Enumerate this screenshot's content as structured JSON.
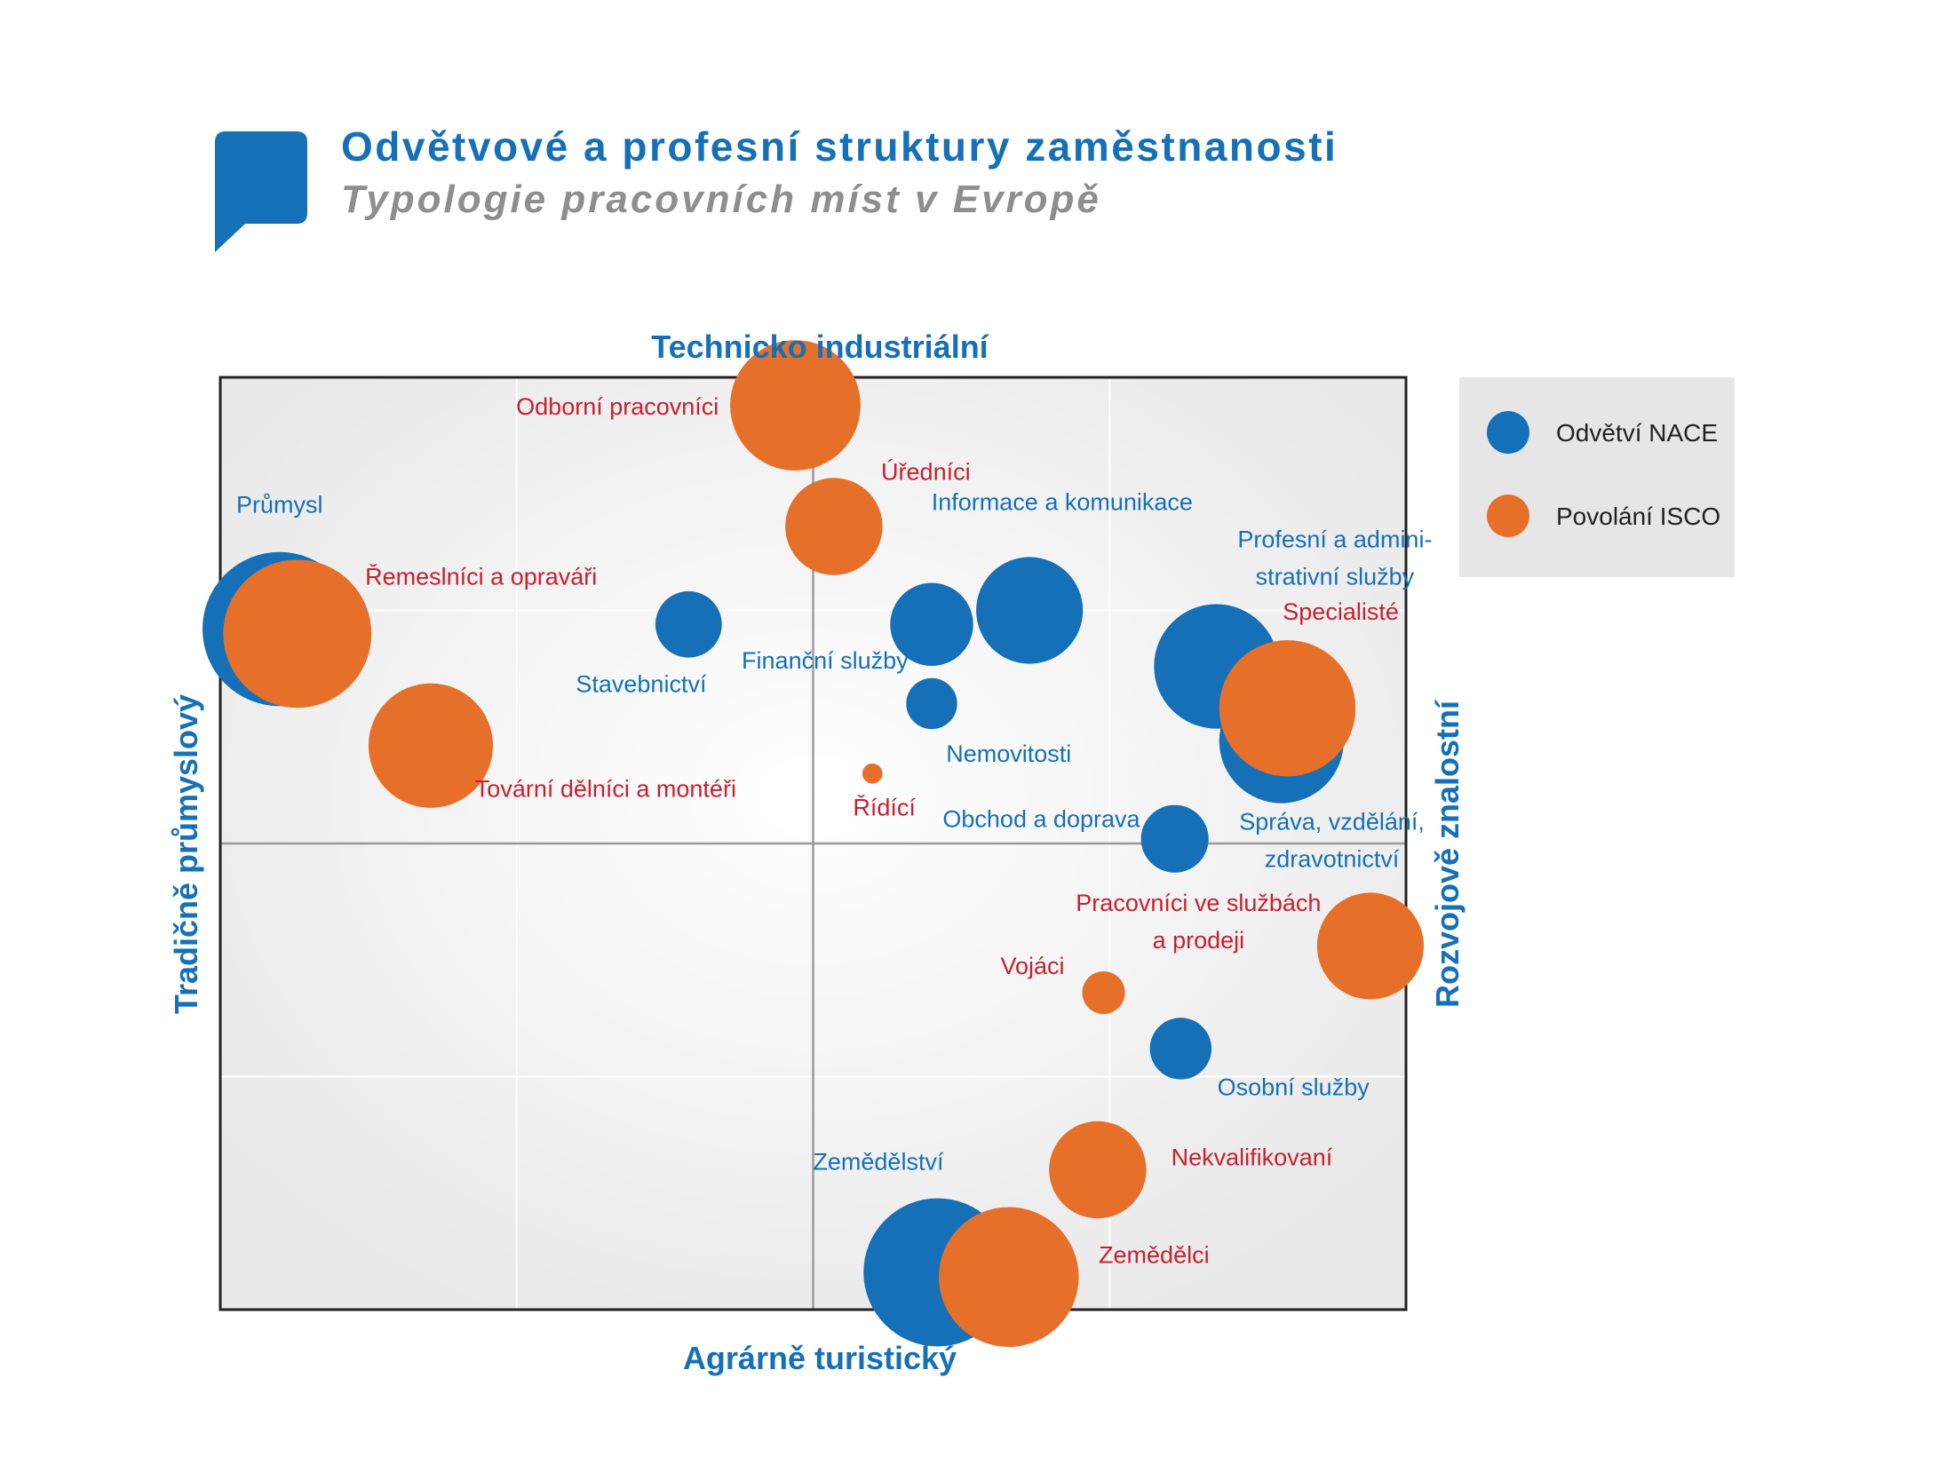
{
  "title": "Odvětvové a profesní struktury zaměstnanosti",
  "subtitle": "Typologie pracovních míst v Evropě",
  "colors": {
    "nace": "#1570b8",
    "isco": "#e6702a",
    "nace_label": "#1570b8",
    "isco_label": "#c8202f",
    "plot_bg": "#e9e9e9",
    "legend_bg": "#e6e6e6",
    "accent": "#1570b8"
  },
  "icon": "speech-bubble-icon",
  "chart_data": {
    "type": "scatter",
    "subtype": "bubble",
    "title": "Odvětvové a profesní struktury zaměstnanosti",
    "subtitle": "Typologie pracovních míst v Evropě",
    "axes": {
      "top": "Technicko industriální",
      "bottom": "Agrárně turistický",
      "left": "Tradičně průmyslový",
      "right": "Rozvojově znalostní"
    },
    "xlim": [
      -1,
      1
    ],
    "ylim": [
      -1,
      1
    ],
    "grid": true,
    "legend_position": "top-right",
    "series": [
      {
        "name": "Odvětví NACE",
        "points": [
          {
            "label": "Průmysl",
            "x": -0.9,
            "y": 0.46,
            "r": 0.13
          },
          {
            "label": "Stavebnictví",
            "x": -0.21,
            "y": 0.47,
            "r": 0.056
          },
          {
            "label": "Finanční služby",
            "x": 0.2,
            "y": 0.47,
            "r": 0.07
          },
          {
            "label": "Informace a komunikace",
            "x": 0.365,
            "y": 0.5,
            "r": 0.09
          },
          {
            "label": "Nemovitosti",
            "x": 0.2,
            "y": 0.3,
            "r": 0.043
          },
          {
            "label": "Profesní a administrativní služby",
            "x": 0.68,
            "y": 0.38,
            "r": 0.105
          },
          {
            "label": "Správa, vzdělání, zdravotnictví",
            "x": 0.79,
            "y": 0.22,
            "r": 0.105
          },
          {
            "label": "Obchod a doprava",
            "x": 0.61,
            "y": 0.01,
            "r": 0.057
          },
          {
            "label": "Osobní služby",
            "x": 0.62,
            "y": -0.44,
            "r": 0.052
          },
          {
            "label": "Zemědělství",
            "x": 0.21,
            "y": -0.92,
            "r": 0.125
          }
        ]
      },
      {
        "name": "Povolání ISCO",
        "points": [
          {
            "label": "Odborní pracovníci",
            "x": -0.03,
            "y": 0.94,
            "r": 0.11
          },
          {
            "label": "Úředníci",
            "x": 0.035,
            "y": 0.68,
            "r": 0.082
          },
          {
            "label": "Řemeslníci a opraváři",
            "x": -0.87,
            "y": 0.45,
            "r": 0.125
          },
          {
            "label": "Specialisté",
            "x": 0.8,
            "y": 0.29,
            "r": 0.115
          },
          {
            "label": "Tovární dělníci a montéři",
            "x": -0.645,
            "y": 0.21,
            "r": 0.105
          },
          {
            "label": "Řídící",
            "x": 0.1,
            "y": 0.15,
            "r": 0.017
          },
          {
            "label": "Pracovníci ve službách a prodeji",
            "x": 0.94,
            "y": -0.22,
            "r": 0.09
          },
          {
            "label": "Vojáci",
            "x": 0.49,
            "y": -0.32,
            "r": 0.036
          },
          {
            "label": "Nekvalifikovaní",
            "x": 0.48,
            "y": -0.7,
            "r": 0.082
          },
          {
            "label": "Zemědělci",
            "x": 0.33,
            "y": -0.93,
            "r": 0.118
          }
        ]
      }
    ],
    "labels": [
      {
        "text": "Průmysl",
        "series": 0,
        "x": -0.9,
        "y": 0.71
      },
      {
        "text": "Stavebnictví",
        "series": 0,
        "x": -0.29,
        "y": 0.325
      },
      {
        "text": "Finanční služby",
        "series": 0,
        "x": 0.02,
        "y": 0.375
      },
      {
        "text": "Informace a komunikace",
        "series": 0,
        "x": 0.42,
        "y": 0.715
      },
      {
        "text": "Nemovitosti",
        "series": 0,
        "x": 0.33,
        "y": 0.175
      },
      {
        "text": "Profesní a admini-",
        "series": 0,
        "x": 0.88,
        "y": 0.635
      },
      {
        "text": "strativní služby",
        "series": 0,
        "x": 0.88,
        "y": 0.555
      },
      {
        "text": "Obchod a doprava",
        "series": 0,
        "x": 0.385,
        "y": 0.035
      },
      {
        "text": "Správa, vzdělání,",
        "series": 0,
        "x": 0.875,
        "y": 0.03
      },
      {
        "text": "zdravotnictví",
        "series": 0,
        "x": 0.875,
        "y": -0.05
      },
      {
        "text": "Osobní služby",
        "series": 0,
        "x": 0.81,
        "y": -0.54
      },
      {
        "text": "Zemědělství",
        "series": 0,
        "x": 0.11,
        "y": -0.7
      },
      {
        "text": "Odborní pracovníci",
        "series": 1,
        "x": -0.33,
        "y": 0.92
      },
      {
        "text": "Úředníci",
        "series": 1,
        "x": 0.19,
        "y": 0.78
      },
      {
        "text": "Řemeslníci a opraváři",
        "series": 1,
        "x": -0.56,
        "y": 0.555
      },
      {
        "text": "Specialisté",
        "series": 1,
        "x": 0.89,
        "y": 0.48
      },
      {
        "text": "Tovární dělníci a montéři",
        "series": 1,
        "x": -0.35,
        "y": 0.1
      },
      {
        "text": "Řídící",
        "series": 1,
        "x": 0.12,
        "y": 0.06
      },
      {
        "text": "Pracovníci ve službách",
        "series": 1,
        "x": 0.65,
        "y": -0.145
      },
      {
        "text": "a prodeji",
        "series": 1,
        "x": 0.65,
        "y": -0.225
      },
      {
        "text": "Vojáci",
        "series": 1,
        "x": 0.37,
        "y": -0.28
      },
      {
        "text": "Nekvalifikovaní",
        "series": 1,
        "x": 0.74,
        "y": -0.69
      },
      {
        "text": "Zemědělci",
        "series": 1,
        "x": 0.575,
        "y": -0.9
      }
    ]
  }
}
